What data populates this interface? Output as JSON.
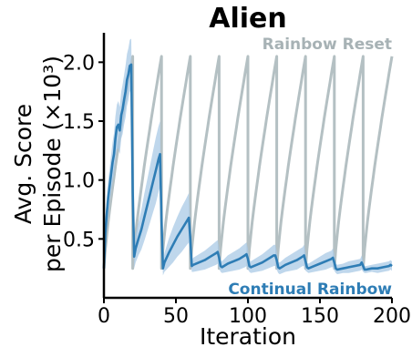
{
  "chart_data": {
    "type": "line",
    "title": "Alien",
    "xlabel": "Iteration",
    "ylabel_line1": "Avg. Score",
    "ylabel_line2": "per Episode (×10³)",
    "xlim": [
      0,
      200
    ],
    "ylim": [
      0.0,
      2.25
    ],
    "xticks": [
      0,
      50,
      100,
      150,
      200
    ],
    "yticks": [
      0.5,
      1.0,
      1.5,
      2.0
    ],
    "xtick_labels": [
      "0",
      "50",
      "100",
      "150",
      "200"
    ],
    "ytick_labels": [
      "0.5",
      "1.0",
      "1.5",
      "2.0"
    ],
    "grid": false,
    "series": [
      {
        "name": "Rainbow Reset",
        "color": "#b4c0c3",
        "label_position": "top-right",
        "cycle_length": 20,
        "reset_value": 0.25,
        "peak_value": 2.05
      },
      {
        "name": "Continual Rainbow",
        "color": "#2e7db5",
        "band_color": "#a9c9e6",
        "label_position": "bottom-right",
        "x": [
          0,
          1,
          2,
          3,
          4,
          5,
          6,
          7,
          8,
          9,
          10,
          11,
          12,
          13,
          14,
          15,
          16,
          17,
          18,
          19,
          20,
          21,
          22,
          24,
          26,
          28,
          30,
          32,
          34,
          36,
          38,
          39,
          40,
          41,
          42,
          45,
          48,
          51,
          54,
          57,
          59,
          60,
          61,
          62,
          66,
          70,
          74,
          78,
          79,
          80,
          81,
          82,
          86,
          90,
          94,
          98,
          99,
          100,
          101,
          102,
          106,
          110,
          114,
          118,
          119,
          120,
          121,
          122,
          126,
          130,
          134,
          138,
          139,
          140,
          141,
          142,
          146,
          150,
          154,
          158,
          159,
          160,
          161,
          162,
          166,
          170,
          174,
          178,
          179,
          180,
          181,
          182,
          186,
          190,
          194,
          198,
          199,
          200
        ],
        "y": [
          0.25,
          0.55,
          0.72,
          0.85,
          0.95,
          1.05,
          1.15,
          1.22,
          1.35,
          1.45,
          1.47,
          1.42,
          1.55,
          1.6,
          1.68,
          1.75,
          1.85,
          1.9,
          1.97,
          1.98,
          0.9,
          0.35,
          0.42,
          0.5,
          0.58,
          0.68,
          0.78,
          0.88,
          0.98,
          1.08,
          1.18,
          1.22,
          0.65,
          0.25,
          0.3,
          0.38,
          0.45,
          0.52,
          0.58,
          0.64,
          0.68,
          0.5,
          0.27,
          0.28,
          0.3,
          0.32,
          0.35,
          0.38,
          0.39,
          0.34,
          0.27,
          0.26,
          0.29,
          0.31,
          0.33,
          0.36,
          0.37,
          0.33,
          0.27,
          0.26,
          0.28,
          0.3,
          0.33,
          0.36,
          0.36,
          0.32,
          0.26,
          0.25,
          0.28,
          0.3,
          0.32,
          0.35,
          0.36,
          0.31,
          0.26,
          0.25,
          0.27,
          0.29,
          0.31,
          0.33,
          0.34,
          0.3,
          0.25,
          0.24,
          0.25,
          0.26,
          0.27,
          0.28,
          0.3,
          0.27,
          0.24,
          0.24,
          0.25,
          0.25,
          0.26,
          0.27,
          0.28,
          0.27
        ],
        "band_halfwidth": [
          0.02,
          0.12,
          0.14,
          0.15,
          0.15,
          0.16,
          0.17,
          0.18,
          0.19,
          0.19,
          0.2,
          0.2,
          0.2,
          0.21,
          0.21,
          0.22,
          0.22,
          0.22,
          0.22,
          0.22,
          0.2,
          0.1,
          0.12,
          0.14,
          0.17,
          0.2,
          0.22,
          0.24,
          0.26,
          0.28,
          0.28,
          0.28,
          0.2,
          0.06,
          0.08,
          0.12,
          0.15,
          0.17,
          0.19,
          0.2,
          0.21,
          0.15,
          0.05,
          0.06,
          0.07,
          0.08,
          0.09,
          0.1,
          0.1,
          0.09,
          0.05,
          0.05,
          0.07,
          0.08,
          0.09,
          0.1,
          0.1,
          0.09,
          0.05,
          0.05,
          0.06,
          0.07,
          0.08,
          0.09,
          0.09,
          0.08,
          0.05,
          0.05,
          0.06,
          0.07,
          0.08,
          0.08,
          0.09,
          0.08,
          0.04,
          0.04,
          0.05,
          0.06,
          0.07,
          0.07,
          0.08,
          0.07,
          0.04,
          0.04,
          0.04,
          0.05,
          0.05,
          0.05,
          0.06,
          0.05,
          0.03,
          0.03,
          0.03,
          0.04,
          0.04,
          0.04,
          0.04,
          0.04
        ]
      }
    ]
  }
}
